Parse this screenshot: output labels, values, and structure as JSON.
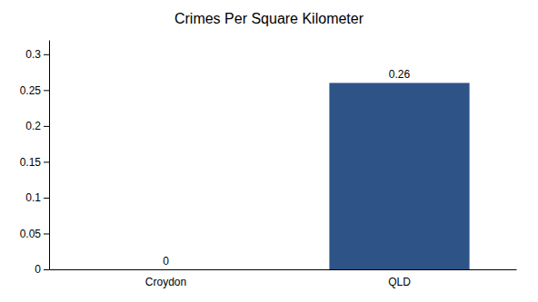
{
  "chart_data": {
    "type": "bar",
    "title": "Crimes Per Square Kilometer",
    "categories": [
      "Croydon",
      "QLD"
    ],
    "values": [
      0,
      0.26
    ],
    "color": "#2e5387",
    "ylim": [
      0,
      0.32
    ],
    "yticks": [
      0,
      0.05,
      0.1,
      0.15,
      0.2,
      0.25,
      0.3
    ],
    "grid": false,
    "data_labels": true
  }
}
